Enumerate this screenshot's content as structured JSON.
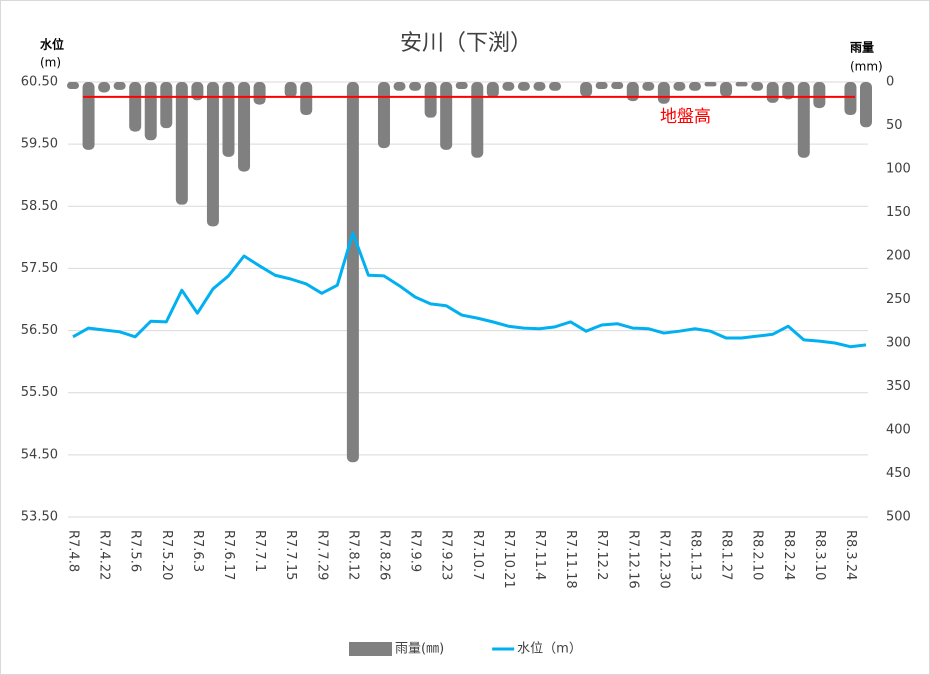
{
  "chart_data": {
    "type": "combo",
    "title": "安川（下渕）",
    "y_label": [
      "水位",
      "(m)"
    ],
    "y2_label": [
      "雨量",
      "(mm)"
    ],
    "categories": [
      "R7.4.8",
      null,
      "R7.4.22",
      null,
      "R7.5.6",
      null,
      "R7.5.20",
      null,
      "R7.6.3",
      null,
      "R7.6.17",
      null,
      "R7.7.1",
      null,
      "R7.7.15",
      null,
      "R7.7.29",
      null,
      "R7.8.12",
      null,
      "R7.8.26",
      null,
      "R7.9.9",
      null,
      "R7.9.23",
      null,
      "R7.10.7",
      null,
      "R7.10.21",
      null,
      "R7.11.4",
      null,
      "R7.11.18",
      null,
      "R7.12.2",
      null,
      "R7.12.16",
      null,
      "R7.12.30",
      null,
      "R8.1.13",
      null,
      "R8.1.27",
      null,
      "R8.2.10",
      null,
      "R8.2.24",
      null,
      "R8.3.10",
      null,
      "R8.3.24",
      null
    ],
    "series": [
      {
        "name": "雨量(㎜)",
        "type": "bar",
        "axis": "y2",
        "color": "#808080",
        "values": [
          8,
          78,
          12,
          9,
          57,
          67,
          53,
          141,
          21,
          166,
          86,
          103,
          26,
          0,
          18,
          38,
          0,
          0,
          437,
          0,
          76,
          10,
          10,
          41,
          78,
          8,
          87,
          18,
          10,
          10,
          10,
          10,
          0,
          17,
          8,
          8,
          22,
          10,
          25,
          10,
          10,
          5,
          17,
          5,
          10,
          24,
          20,
          87,
          30,
          0,
          38,
          52
        ]
      },
      {
        "name": "水位（m）",
        "type": "line",
        "color": "#00b0f0",
        "values": [
          56.4,
          56.54,
          56.51,
          56.48,
          56.4,
          56.65,
          56.64,
          57.15,
          56.78,
          57.17,
          57.38,
          57.7,
          57.54,
          57.39,
          57.33,
          57.25,
          57.1,
          57.23,
          58.07,
          57.39,
          57.38,
          57.22,
          57.04,
          56.93,
          56.9,
          56.75,
          56.7,
          56.64,
          56.57,
          56.54,
          56.53,
          56.56,
          56.64,
          56.49,
          56.59,
          56.61,
          56.54,
          56.53,
          56.46,
          56.49,
          56.53,
          56.49,
          56.38,
          56.38,
          56.41,
          56.44,
          56.57,
          56.35,
          56.33,
          56.3,
          56.24,
          56.27
        ]
      }
    ],
    "reference_line": {
      "value": 60.26,
      "label": "地盤高",
      "color": "#ff0000"
    },
    "ylim": [
      53.5,
      60.5
    ],
    "yticks": [
      {
        "value": 53.5,
        "label": "53.50"
      },
      {
        "value": 54.5,
        "label": "54.50"
      },
      {
        "value": 55.5,
        "label": "55.50"
      },
      {
        "value": 56.5,
        "label": "56.50"
      },
      {
        "value": 57.5,
        "label": "57.50"
      },
      {
        "value": 58.5,
        "label": "58.50"
      },
      {
        "value": 59.5,
        "label": "59.50"
      },
      {
        "value": 60.5,
        "label": "60.50"
      }
    ],
    "y2lim": [
      0,
      500
    ],
    "y2_reversed": true,
    "y2ticks": [
      0,
      50,
      100,
      150,
      200,
      250,
      300,
      350,
      400,
      450,
      500
    ],
    "grid": true,
    "legend": "bottom"
  }
}
